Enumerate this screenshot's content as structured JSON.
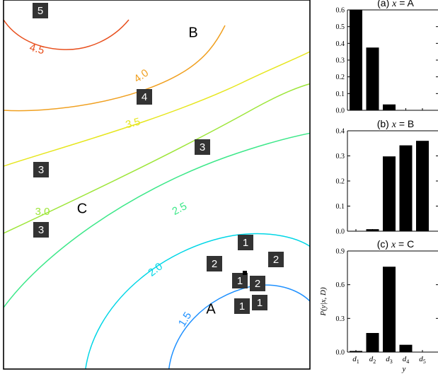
{
  "chart_data": [
    {
      "type": "contour",
      "contour_levels": [
        {
          "value": 1.5,
          "label": "1.5",
          "color": "#1e90ff"
        },
        {
          "value": 2.0,
          "label": "2.0",
          "color": "#00d6e6"
        },
        {
          "value": 2.5,
          "label": "2.5",
          "color": "#3ee88a"
        },
        {
          "value": 3.0,
          "label": "3.0",
          "color": "#9ee63a"
        },
        {
          "value": 3.5,
          "label": "3.5",
          "color": "#e6e61e"
        },
        {
          "value": 4.0,
          "label": "4.0",
          "color": "#f0a020"
        },
        {
          "value": 4.5,
          "label": "4.5",
          "color": "#e8501e"
        }
      ],
      "query_points": [
        {
          "label": "A"
        },
        {
          "label": "B"
        },
        {
          "label": "C"
        }
      ],
      "observations": [
        "5",
        "4",
        "3",
        "3",
        "3",
        "1",
        "2",
        "2",
        "1",
        "2",
        "1",
        "1"
      ],
      "marker_color": "#333333"
    },
    {
      "type": "bar",
      "title": "(a) x = A",
      "title_prefix": "(a) ",
      "title_var": "x",
      "title_eq": " = A",
      "categories": [
        "d1",
        "d2",
        "d3",
        "d4",
        "d5"
      ],
      "values": [
        0.6,
        0.375,
        0.035,
        0.0,
        0.0
      ],
      "ylim": [
        0,
        0.6
      ],
      "yticks": [
        "0.0",
        "0.1",
        "0.2",
        "0.3",
        "0.4",
        "0.5",
        "0.6"
      ],
      "bar_color": "#000000"
    },
    {
      "type": "bar",
      "title": "(b) x = B",
      "title_prefix": "(b) ",
      "title_var": "x",
      "title_eq": " = B",
      "categories": [
        "d1",
        "d2",
        "d3",
        "d4",
        "d5"
      ],
      "values": [
        0.0,
        0.008,
        0.298,
        0.342,
        0.36
      ],
      "ylim": [
        0,
        0.4
      ],
      "yticks": [
        "0.0",
        "0.1",
        "0.2",
        "0.3",
        "0.4"
      ],
      "bar_color": "#000000"
    },
    {
      "type": "bar",
      "title": "(c) x = C",
      "title_prefix": "(c) ",
      "title_var": "x",
      "title_eq": " = C",
      "categories": [
        "d1",
        "d2",
        "d3",
        "d4",
        "d5"
      ],
      "values": [
        0.01,
        0.17,
        0.76,
        0.065,
        0.0
      ],
      "ylim": [
        0,
        0.9
      ],
      "yticks": [
        "0.0",
        "0.3",
        "0.6",
        "0.9"
      ],
      "ylabel": "P(y|x, D)",
      "xlabel": "y",
      "xtick_labels": [
        {
          "base": "d",
          "sub": "1"
        },
        {
          "base": "d",
          "sub": "2"
        },
        {
          "base": "d",
          "sub": "3"
        },
        {
          "base": "d",
          "sub": "4"
        },
        {
          "base": "d",
          "sub": "5"
        }
      ],
      "bar_color": "#000000"
    }
  ]
}
